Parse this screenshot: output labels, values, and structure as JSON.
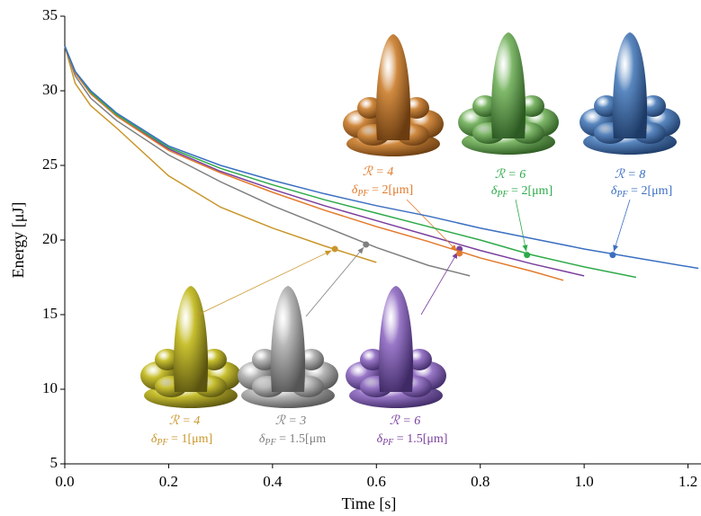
{
  "chart_data": {
    "type": "line",
    "xlabel": "Time [s]",
    "ylabel": "Energy [μJ]",
    "xlim": [
      0,
      1.225
    ],
    "ylim": [
      5,
      35
    ],
    "xticks": [
      {
        "value": 0,
        "label": "0.0"
      },
      0.2,
      0.4,
      0.6,
      0.8,
      {
        "value": 1,
        "label": "1.0"
      },
      1.2
    ],
    "yticks": [
      5,
      10,
      15,
      20,
      25,
      30,
      35
    ],
    "series": [
      {
        "name": [
          "ℛ = 4",
          {
            "base": "δ",
            "sub": "PF",
            "rest": " = 1[μm]"
          }
        ],
        "color": "#c9962a",
        "x": [
          0,
          0.02,
          0.05,
          0.1,
          0.2,
          0.3,
          0.4,
          0.5,
          0.6
        ],
        "values": [
          33,
          30.5,
          29,
          27.5,
          24.3,
          22.2,
          20.8,
          19.6,
          18.5
        ],
        "marker": {
          "x": 0.52,
          "y": 19.4
        }
      },
      {
        "name": [
          "ℛ = 3",
          {
            "base": "δ",
            "sub": "PF",
            "rest": " = 1.5[μm"
          }
        ],
        "color": "#7f7f7f",
        "x": [
          0,
          0.02,
          0.05,
          0.1,
          0.2,
          0.3,
          0.4,
          0.5,
          0.6,
          0.7,
          0.78
        ],
        "values": [
          33,
          31,
          29.5,
          28,
          25.7,
          23.9,
          22.3,
          20.9,
          19.5,
          18.3,
          17.6
        ],
        "marker": {
          "x": 0.58,
          "y": 19.7
        }
      },
      {
        "name": [
          "ℛ = 6",
          {
            "base": "δ",
            "sub": "PF",
            "rest": " = 1.5[μm]"
          }
        ],
        "color": "#7b3f9e",
        "x": [
          0,
          0.02,
          0.05,
          0.1,
          0.2,
          0.3,
          0.4,
          0.5,
          0.6,
          0.7,
          0.8,
          0.9,
          1.0
        ],
        "values": [
          33,
          31.2,
          29.8,
          28.3,
          26.1,
          24.6,
          23.4,
          22.3,
          21.3,
          20.3,
          19.3,
          18.4,
          17.6
        ],
        "marker": {
          "x": 0.76,
          "y": 19.4
        }
      },
      {
        "name": [
          "ℛ = 4",
          {
            "base": "δ",
            "sub": "PF",
            "rest": " = 2[μm]"
          }
        ],
        "color": "#e27a2c",
        "x": [
          0,
          0.02,
          0.05,
          0.1,
          0.2,
          0.3,
          0.4,
          0.5,
          0.6,
          0.7,
          0.8,
          0.9,
          0.96
        ],
        "values": [
          33,
          31.2,
          29.8,
          28.3,
          26,
          24.5,
          23.2,
          22,
          20.9,
          19.9,
          18.8,
          17.9,
          17.3
        ],
        "marker": {
          "x": 0.76,
          "y": 19.1
        }
      },
      {
        "name": [
          "ℛ = 6",
          {
            "base": "δ",
            "sub": "PF",
            "rest": " = 2[μm]"
          }
        ],
        "color": "#2eaa4a",
        "x": [
          0,
          0.02,
          0.05,
          0.1,
          0.2,
          0.3,
          0.4,
          0.5,
          0.6,
          0.7,
          0.8,
          0.9,
          1.0,
          1.1
        ],
        "values": [
          33,
          31.3,
          29.9,
          28.4,
          26.2,
          24.8,
          23.7,
          22.7,
          21.8,
          20.9,
          20,
          19,
          18.2,
          17.5
        ],
        "marker": {
          "x": 0.89,
          "y": 19
        }
      },
      {
        "name": [
          "ℛ = 8",
          {
            "base": "δ",
            "sub": "PF",
            "rest": " = 2[μm]"
          }
        ],
        "color": "#3b6fc1",
        "x": [
          0,
          0.02,
          0.05,
          0.1,
          0.2,
          0.3,
          0.4,
          0.5,
          0.6,
          0.7,
          0.8,
          0.9,
          1.0,
          1.1,
          1.22
        ],
        "values": [
          33,
          31.3,
          30,
          28.5,
          26.3,
          25,
          24,
          23.1,
          22.3,
          21.6,
          20.8,
          20.1,
          19.4,
          18.8,
          18.1
        ],
        "marker": {
          "x": 1.055,
          "y": 19
        }
      }
    ]
  }
}
